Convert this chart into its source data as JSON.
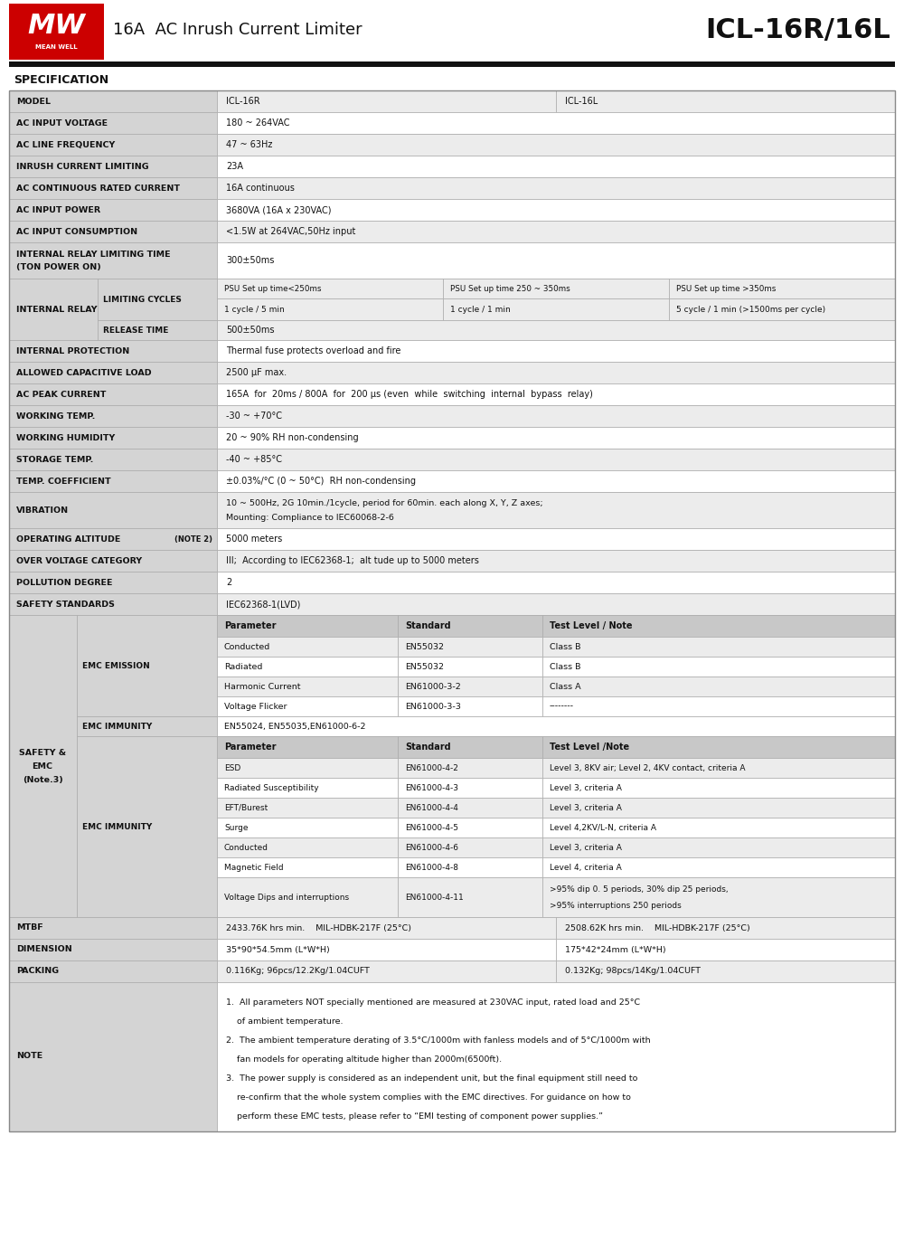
{
  "fig_w": 10.0,
  "fig_h": 13.81,
  "dpi": 100,
  "bg_color": "#ffffff",
  "header_red": "#cc0000",
  "label_bg": "#d4d4d4",
  "alt_bg": "#ececec",
  "white_bg": "#ffffff",
  "hdr_col_bg": "#c8c8c8",
  "border_color": "#aaaaaa",
  "black": "#000000",
  "header_title": "16A  AC Inrush Current Limiter",
  "header_model": "ICL-16R/16L",
  "spec_title": "SPECIFICATION"
}
